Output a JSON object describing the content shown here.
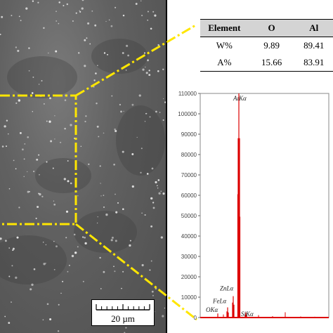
{
  "image": {
    "kind": "SEM micrograph with EDS spectrum"
  },
  "scale_bar": {
    "label": "20 µm"
  },
  "table": {
    "headers": [
      "Element",
      "O",
      "Al"
    ],
    "rows": [
      [
        "W%",
        "9.89",
        "89.41"
      ],
      [
        "A%",
        "15.66",
        "83.91"
      ]
    ]
  },
  "colors": {
    "spectrum": "#dd0000",
    "highlight": "#ffe600",
    "sem_bg": "#5e5e5e"
  },
  "chart_data": {
    "type": "bar",
    "ylim": [
      0,
      110000
    ],
    "yticks": [
      0,
      10000,
      20000,
      30000,
      40000,
      50000,
      60000,
      70000,
      80000,
      90000,
      100000,
      110000
    ],
    "yticklabels": [
      "0",
      "10000",
      "20000",
      "30000",
      "40000",
      "50000",
      "60000",
      "70000",
      "80000",
      "90000",
      "100000",
      "110000"
    ],
    "peaks": [
      {
        "label": "AlKα",
        "value": 110000
      },
      {
        "label": "ZnLα",
        "value": 10500
      },
      {
        "label": "FeLα",
        "value": 5000
      },
      {
        "label": "OKα",
        "value": 2000
      },
      {
        "label": "SiKα",
        "value": 2500
      }
    ],
    "peak_labels_display": [
      "AıKα",
      "ZnLα",
      "FeLα",
      "OKα",
      "SiKα"
    ],
    "grid": false
  }
}
